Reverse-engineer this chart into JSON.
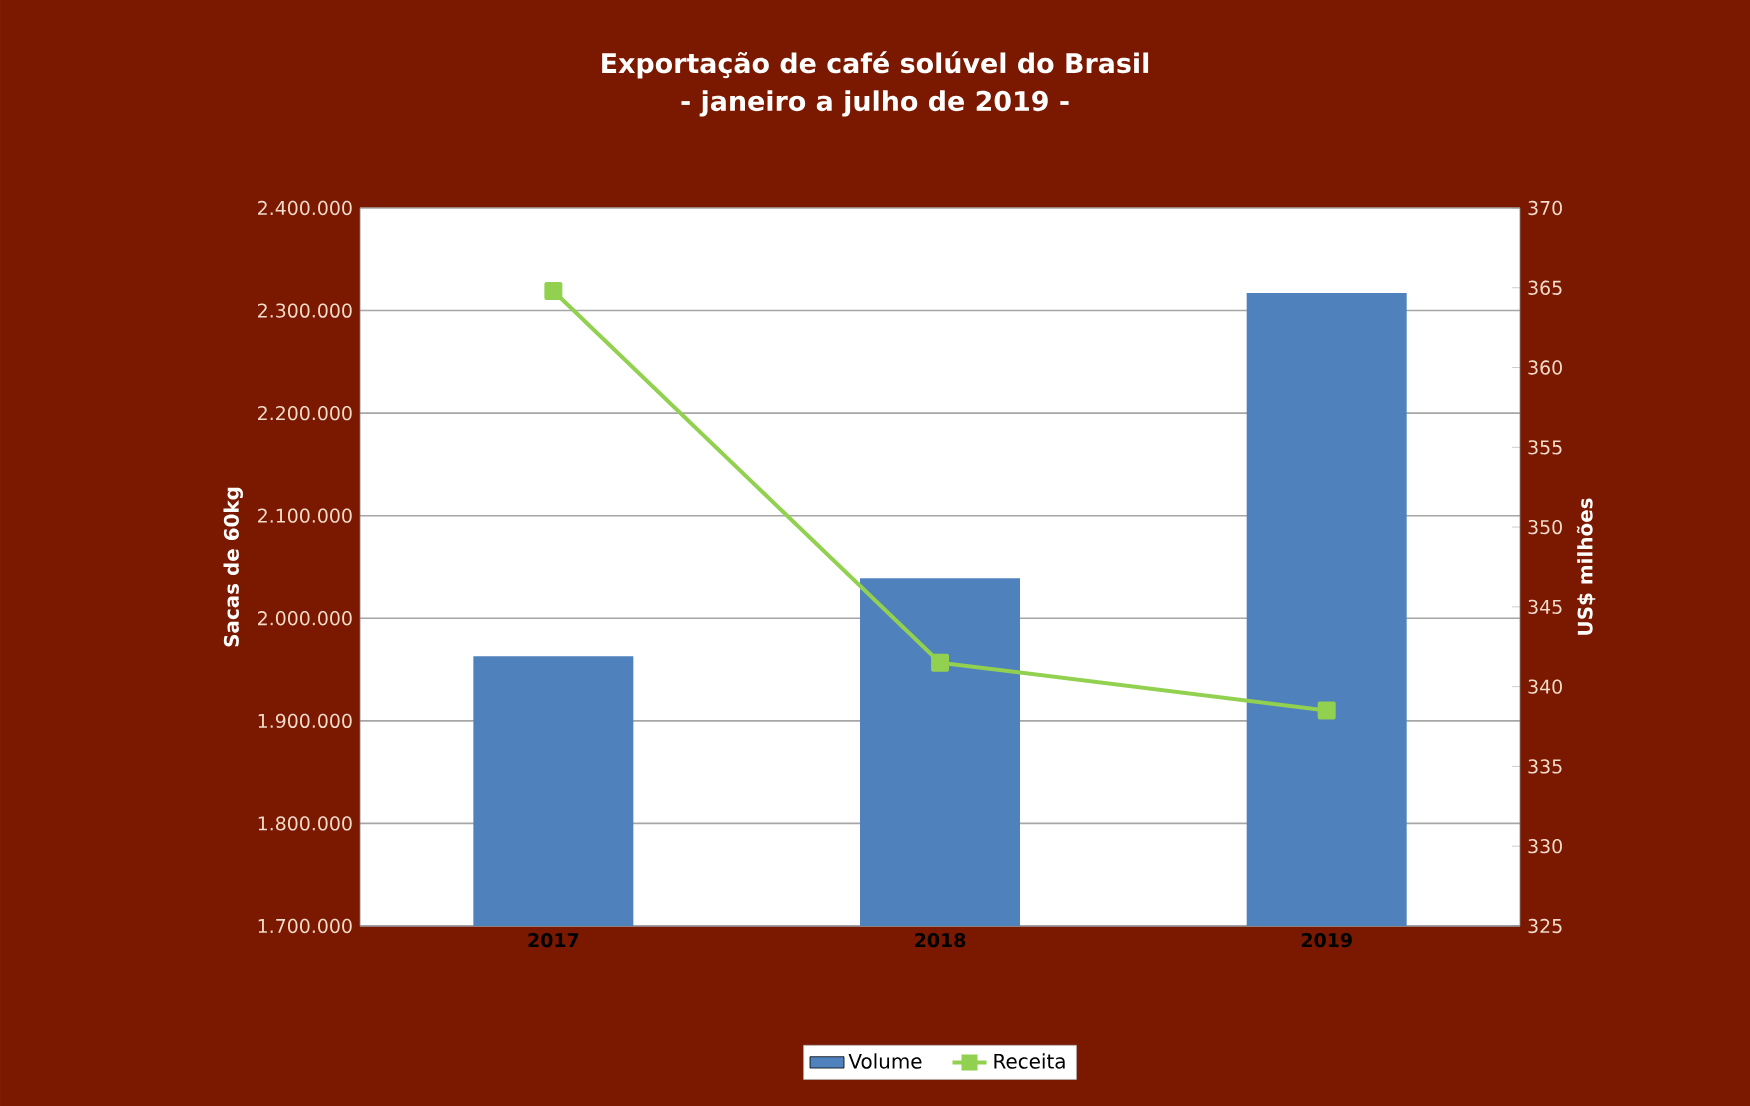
{
  "chart_data": {
    "type": "bar",
    "title": "Exportação de café solúvel do Brasil",
    "subtitle": "- janeiro a julho de 2019 -",
    "ylabel": "Sacas de 60kg",
    "y2label": "US$ milhões",
    "categories": [
      "2017",
      "2018",
      "2019"
    ],
    "series": [
      {
        "name": "Volume",
        "color": "#4f81bd",
        "values": [
          1963000,
          2039000,
          2317000
        ]
      },
      {
        "name": "Receita",
        "type": "line",
        "axis": "y2",
        "color": "#92d050",
        "marker": "square",
        "values": [
          364.8,
          341.5,
          338.5
        ]
      }
    ],
    "ylim": [
      1700000,
      2400000
    ],
    "yticks": [
      {
        "value": 1700000,
        "label": "1.700.000"
      },
      {
        "value": 1800000,
        "label": "1.800.000"
      },
      {
        "value": 1900000,
        "label": "1.900.000"
      },
      {
        "value": 2000000,
        "label": "2.000.000"
      },
      {
        "value": 2100000,
        "label": "2.100.000"
      },
      {
        "value": 2200000,
        "label": "2.200.000"
      },
      {
        "value": 2300000,
        "label": "2.300.000"
      },
      {
        "value": 2400000,
        "label": "2.400.000"
      }
    ],
    "y2lim": [
      325,
      370
    ],
    "y2ticks": [
      325,
      330,
      335,
      340,
      345,
      350,
      355,
      360,
      365,
      370
    ],
    "grid": "y",
    "legend": "bottom"
  }
}
